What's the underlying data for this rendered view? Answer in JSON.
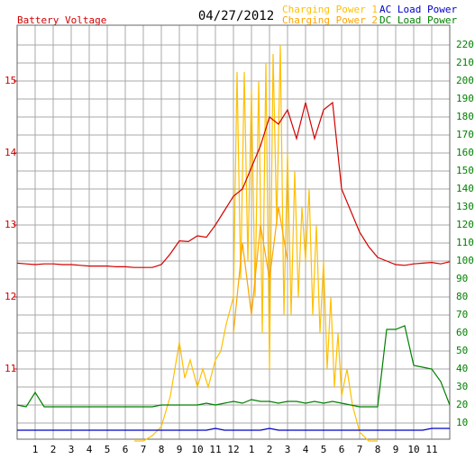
{
  "chart_data": {
    "type": "line",
    "title": "04/27/2012",
    "x": [
      0,
      0.5,
      1,
      1.5,
      2,
      2.5,
      3,
      3.5,
      4,
      4.5,
      5,
      5.5,
      6,
      6.5,
      7,
      7.5,
      8,
      8.5,
      9,
      9.5,
      10,
      10.5,
      11,
      11.5,
      12,
      12.5,
      13,
      13.5,
      14,
      14.5,
      15,
      15.5,
      16,
      16.5,
      17,
      17.5,
      18,
      18.5,
      19,
      19.5,
      20,
      20.5,
      21,
      21.5,
      22,
      22.5,
      23,
      23.5,
      24
    ],
    "xlim": [
      0,
      24
    ],
    "xticks": [
      1,
      2,
      3,
      4,
      5,
      6,
      7,
      8,
      9,
      10,
      11,
      12,
      {
        "value": 13,
        "label": "1"
      },
      {
        "value": 14,
        "label": "2"
      },
      {
        "value": 15,
        "label": "3"
      },
      {
        "value": 16,
        "label": "4"
      },
      {
        "value": 17,
        "label": "5"
      },
      {
        "value": 18,
        "label": "6"
      },
      {
        "value": 19,
        "label": "7"
      },
      {
        "value": 20,
        "label": "8"
      },
      {
        "value": 21,
        "label": "9"
      },
      {
        "value": 22,
        "label": "10"
      },
      {
        "value": 23,
        "label": "11"
      }
    ],
    "ylim": [
      10.025,
      15.775
    ],
    "yticks": [
      11,
      12,
      13,
      14,
      15
    ],
    "y2lim": [
      1,
      231
    ],
    "y2ticks": [
      10,
      20,
      30,
      40,
      50,
      60,
      70,
      80,
      90,
      100,
      110,
      120,
      130,
      140,
      150,
      160,
      170,
      180,
      190,
      200,
      210,
      220
    ],
    "grid": true,
    "series": [
      {
        "name": "Battery Voltage",
        "color": "#d40000",
        "values": [
          12.47,
          12.46,
          12.45,
          12.46,
          12.46,
          12.45,
          12.45,
          12.44,
          12.43,
          12.43,
          12.43,
          12.42,
          12.42,
          12.41,
          12.41,
          12.41,
          12.45,
          12.6,
          12.78,
          12.77,
          12.85,
          12.83,
          13.0,
          13.2,
          13.4,
          13.5,
          13.8,
          14.1,
          14.5,
          14.4,
          14.6,
          14.2,
          14.7,
          14.2,
          14.6,
          14.7,
          13.5,
          13.2,
          12.9,
          12.7,
          12.55,
          12.5,
          12.45,
          12.44,
          12.46,
          12.47,
          12.48,
          12.46,
          12.49
        ]
      },
      {
        "name": "Charging Power 1",
        "color": "#ffc000",
        "axis": "y2",
        "x": [
          6.5,
          7,
          7.5,
          8,
          8.5,
          9,
          9.3,
          9.6,
          10,
          10.3,
          10.6,
          11,
          11.3,
          11.6,
          12,
          12.2,
          12.4,
          12.6,
          12.8,
          13,
          13.2,
          13.4,
          13.6,
          13.8,
          14,
          14.2,
          14.4,
          14.6,
          14.8,
          15,
          15.2,
          15.4,
          15.6,
          15.8,
          16,
          16.2,
          16.4,
          16.6,
          16.8,
          17,
          17.2,
          17.4,
          17.6,
          17.8,
          18,
          18.3,
          18.6,
          19,
          19.5,
          20
        ],
        "values": [
          0,
          0,
          3,
          8,
          25,
          55,
          35,
          45,
          30,
          40,
          30,
          45,
          50,
          65,
          80,
          205,
          90,
          205,
          100,
          195,
          80,
          200,
          60,
          210,
          40,
          215,
          120,
          220,
          70,
          160,
          70,
          150,
          80,
          130,
          100,
          140,
          70,
          120,
          60,
          100,
          40,
          80,
          30,
          60,
          25,
          40,
          20,
          5,
          0,
          0
        ]
      },
      {
        "name": "Charging Power 2",
        "color": "#ffa500",
        "axis": "y2",
        "x": [
          12,
          12.5,
          13,
          13.5,
          14,
          14.5,
          15
        ],
        "values": [
          60,
          110,
          70,
          120,
          90,
          130,
          100
        ]
      },
      {
        "name": "AC Load Power",
        "color": "#0000c8",
        "axis": "y2",
        "values": [
          6,
          6,
          6,
          6,
          6,
          6,
          6,
          6,
          6,
          6,
          6,
          6,
          6,
          6,
          6,
          6,
          6,
          6,
          6,
          6,
          6,
          6,
          7,
          6,
          6,
          6,
          6,
          6,
          7,
          6,
          6,
          6,
          6,
          6,
          6,
          6,
          6,
          6,
          6,
          6,
          6,
          6,
          6,
          6,
          6,
          6,
          7,
          7,
          7
        ]
      },
      {
        "name": "DC Load Power",
        "color": "#008000",
        "axis": "y2",
        "values": [
          20,
          19,
          27,
          19,
          19,
          19,
          19,
          19,
          19,
          19,
          19,
          19,
          19,
          19,
          19,
          19,
          20,
          20,
          20,
          20,
          20,
          21,
          20,
          21,
          22,
          21,
          23,
          22,
          22,
          21,
          22,
          22,
          21,
          22,
          21,
          22,
          21,
          20,
          19,
          19,
          19,
          62,
          62,
          64,
          42,
          41,
          40,
          33,
          20
        ]
      }
    ]
  }
}
